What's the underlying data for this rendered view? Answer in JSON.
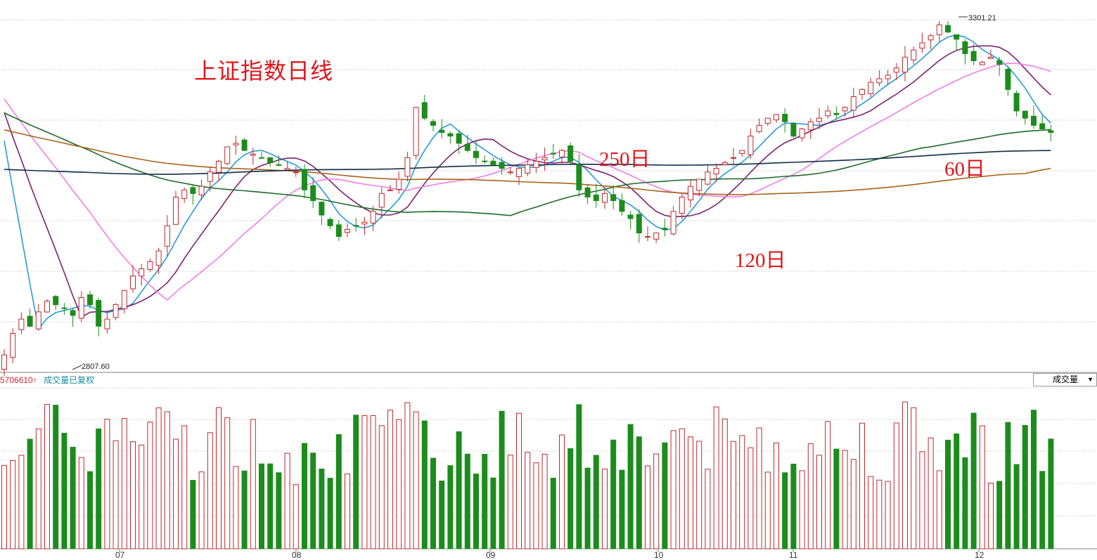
{
  "title": "上证指数日线",
  "ma_labels": {
    "ma250": "250日",
    "ma60": "60日",
    "ma120": "120日"
  },
  "volume_panel": {
    "value_text": "5706610↑",
    "note": "成交量已复权",
    "selector_label": "成交量",
    "selector_icon": "dropdown-arrow-icon"
  },
  "colors": {
    "up": "#c0292d",
    "down": "#1c8c1c",
    "ma5": "#2a9bd6",
    "ma10": "#7b2270",
    "ma20": "#ef7fe6",
    "ma60": "#1f6b2a",
    "ma120": "#a8641b",
    "ma250": "#0f2f45",
    "label": "#e0161b"
  },
  "chart_data": {
    "type": "candlestick",
    "title": "上证指数日线",
    "x_ticks": [
      "07",
      "08",
      "09",
      "10",
      "11",
      "12"
    ],
    "high_annotation": "3301.21",
    "low_annotation": "2807.60",
    "high": 3301.21,
    "low": 2807.6,
    "ohlc_close_approx": [
      2830,
      2860,
      2880,
      2870,
      2890,
      2905,
      2900,
      2895,
      2885,
      2910,
      2900,
      2870,
      2880,
      2900,
      2920,
      2940,
      2950,
      2960,
      2975,
      3010,
      3050,
      3060,
      3055,
      3065,
      3085,
      3100,
      3120,
      3125,
      3115,
      3110,
      3105,
      3098,
      3095,
      3090,
      3085,
      3060,
      3045,
      3025,
      3010,
      2995,
      3005,
      3010,
      3015,
      3030,
      3055,
      3060,
      3075,
      3105,
      3175,
      3160,
      3150,
      3140,
      3135,
      3125,
      3115,
      3105,
      3100,
      3095,
      3090,
      3085,
      3090,
      3095,
      3100,
      3105,
      3110,
      3115,
      3100,
      3060,
      3050,
      3045,
      3055,
      3045,
      3030,
      3020,
      3000,
      2995,
      3000,
      3005,
      3030,
      3050,
      3065,
      3075,
      3085,
      3090,
      3098,
      3105,
      3115,
      3135,
      3150,
      3160,
      3165,
      3155,
      3135,
      3145,
      3155,
      3160,
      3170,
      3165,
      3175,
      3190,
      3200,
      3210,
      3215,
      3220,
      3230,
      3245,
      3255,
      3265,
      3275,
      3290,
      3280,
      3270,
      3250,
      3240,
      3238,
      3245,
      3235,
      3200,
      3170,
      3160,
      3150,
      3145,
      3140
    ],
    "volume_series_note": "daily turnover bars, up = hollow red, down = solid green"
  }
}
